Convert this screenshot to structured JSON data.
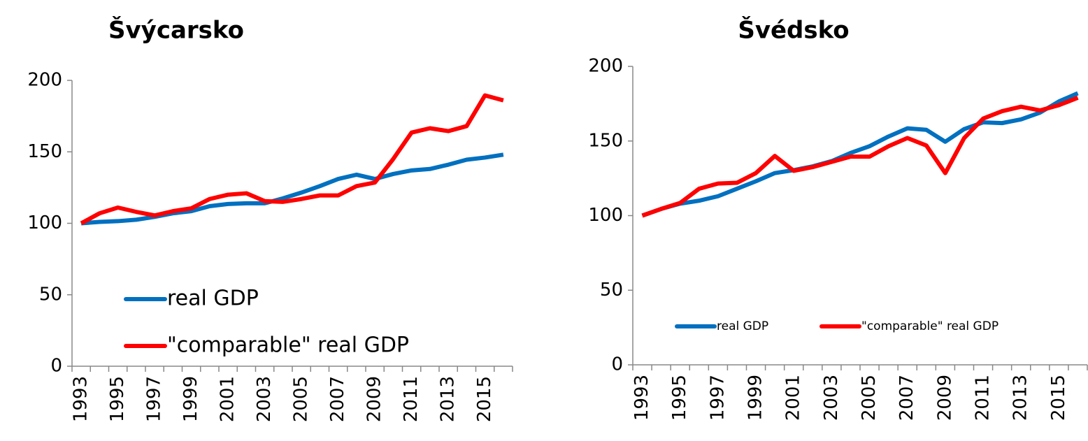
{
  "chart_data": [
    {
      "type": "line",
      "title": "Švýcarsko",
      "categories": [
        "1993",
        null,
        "1995",
        null,
        "1997",
        null,
        "1999",
        null,
        "2001",
        null,
        "2003",
        null,
        "2005",
        null,
        "2007",
        null,
        "2009",
        null,
        "2011",
        null,
        "2013",
        null,
        "2015",
        null
      ],
      "series": [
        {
          "name": "real GDP",
          "color": "#0070c0",
          "values": [
            100,
            101,
            101.5,
            102.5,
            104.5,
            107,
            108.5,
            112,
            113.5,
            114,
            114,
            117.5,
            121.5,
            126,
            131,
            134,
            131,
            134.5,
            137,
            138,
            141,
            144.5,
            146,
            148
          ]
        },
        {
          "name": "\"comparable\" real GDP",
          "color": "#ff0000",
          "values": [
            100,
            107,
            111,
            108,
            105.5,
            108.5,
            110.5,
            117,
            120,
            121,
            115.5,
            115,
            117,
            119.5,
            119.5,
            126,
            128.5,
            145,
            163.5,
            166.5,
            164.5,
            168,
            189.5,
            186
          ]
        }
      ],
      "ylim": [
        0,
        200
      ],
      "yticks": [
        0,
        50,
        100,
        150,
        200
      ],
      "legend": "inside"
    },
    {
      "type": "line",
      "title": "Švédsko",
      "categories": [
        "1993",
        null,
        "1995",
        null,
        "1997",
        null,
        "1999",
        null,
        "2001",
        null,
        "2003",
        null,
        "2005",
        null,
        "2007",
        null,
        "2009",
        null,
        "2011",
        null,
        "2013",
        null,
        "2015",
        null
      ],
      "series": [
        {
          "name": "real GDP",
          "color": "#0070c0",
          "values": [
            100,
            104.5,
            108,
            110,
            113,
            118,
            123,
            128.5,
            130.5,
            133,
            136.5,
            142,
            146.5,
            153,
            158.5,
            157.5,
            149.5,
            158,
            162.5,
            162,
            164.5,
            169,
            176.5,
            182
          ]
        },
        {
          "name": "\"comparable\" real GDP",
          "color": "#ff0000",
          "values": [
            100,
            104.5,
            108.5,
            118,
            121.5,
            122,
            128.5,
            140,
            130,
            132.5,
            136,
            139.5,
            139.5,
            146.5,
            152,
            147,
            128.5,
            152,
            165,
            170,
            173,
            170.5,
            174,
            179
          ]
        }
      ],
      "ylim": [
        0,
        200
      ],
      "yticks": [
        0,
        50,
        100,
        150,
        200
      ],
      "legend": "bottom"
    }
  ]
}
